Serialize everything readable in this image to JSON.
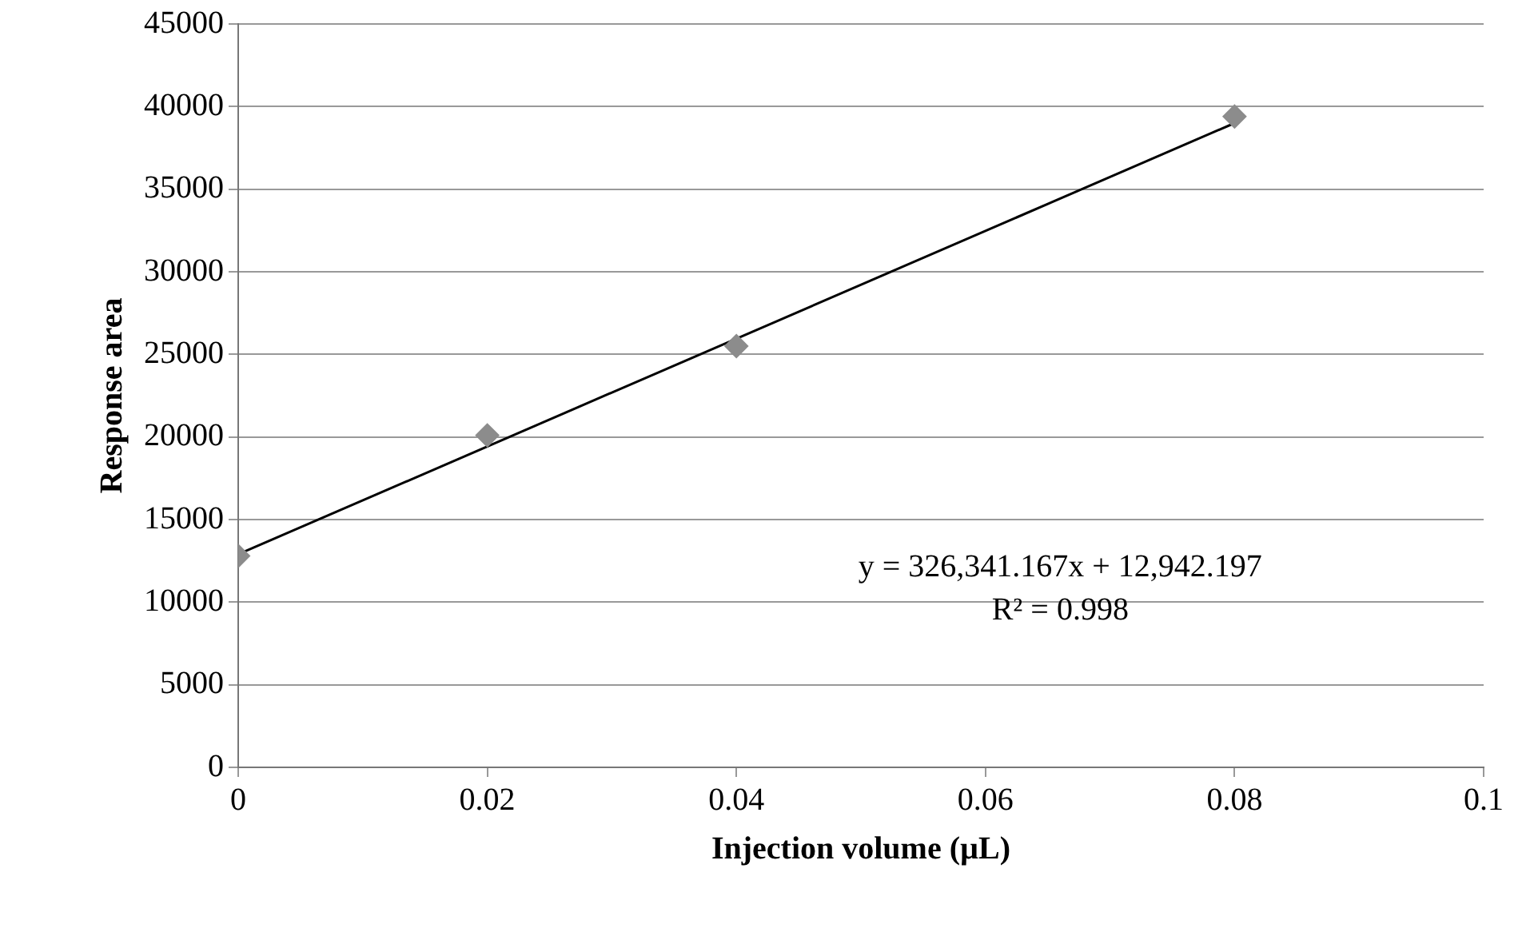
{
  "chart_data": {
    "type": "scatter",
    "xlabel": "Injection volume (µL)",
    "ylabel": "Response area",
    "series": [
      {
        "type": "scatter",
        "color": "#8c8c8c",
        "marker": "diamond",
        "x": [
          0,
          0.02,
          0.04,
          0.08
        ],
        "values": [
          12800,
          20100,
          25500,
          39400
        ]
      },
      {
        "type": "line",
        "color": "#000000",
        "marker": "none",
        "x": [
          0,
          0.08
        ],
        "values": [
          12900,
          39000
        ]
      }
    ],
    "xlim": [
      0,
      0.1
    ],
    "xticks": [
      0,
      0.02,
      0.04,
      0.06,
      0.08,
      0.1
    ],
    "ylim": [
      0,
      45000
    ],
    "yticks": [
      0,
      5000,
      10000,
      15000,
      20000,
      25000,
      30000,
      35000,
      40000,
      45000
    ],
    "grid": "y",
    "legend": false,
    "annotations": [
      "y = 326,341.167x + 12,942.197",
      "R² = 0.998"
    ]
  }
}
